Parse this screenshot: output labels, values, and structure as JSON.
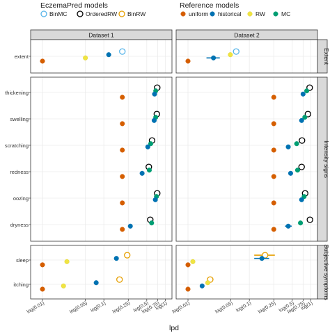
{
  "legend": {
    "eczemapred": {
      "title": "EczemaPred models",
      "items": [
        {
          "label": "BinMC",
          "color": "#56b4e9"
        },
        {
          "label": "OrderedRW",
          "color": "#000000"
        },
        {
          "label": "BinRW",
          "color": "#e69f00"
        }
      ]
    },
    "reference": {
      "title": "Reference models",
      "items": [
        {
          "label": "uniform",
          "color": "#d55e00"
        },
        {
          "label": "historical",
          "color": "#0072b2"
        },
        {
          "label": "RW",
          "color": "#f0e442"
        },
        {
          "label": "MC",
          "color": "#009e73"
        }
      ]
    }
  },
  "chart_data": {
    "type": "scatter",
    "xlabel": "lpd",
    "xscale": "log",
    "xticks": [
      "log(0.01)",
      "log(0.05)",
      "log(0.1)",
      "log(0.25)",
      "log(0.5)",
      "log(0.75)",
      "log(1)"
    ],
    "xtick_values": [
      0.01,
      0.05,
      0.1,
      0.25,
      0.5,
      0.75,
      1
    ],
    "xlim": [
      0.0075,
      1.1
    ],
    "columns": [
      "Dataset 1",
      "Dataset 2"
    ],
    "rows": [
      {
        "name": "Extent",
        "items": [
          "extent"
        ]
      },
      {
        "name": "Intensity signs",
        "items": [
          "thickening",
          "swelling",
          "scratching",
          "redness",
          "oozing",
          "dryness"
        ]
      },
      {
        "name": "Subjective symptoms",
        "items": [
          "sleep",
          "itching"
        ]
      }
    ],
    "series_colors": {
      "BinMC": "#56b4e9",
      "OrderedRW": "#000000",
      "BinRW": "#e69f00",
      "uniform": "#d55e00",
      "historical": "#0072b2",
      "RW": "#f0e442",
      "MC": "#009e73"
    },
    "points": {
      "Dataset 1": {
        "extent": [
          [
            "BinMC",
            0.2
          ],
          [
            "historical",
            0.12
          ],
          [
            "RW",
            0.05
          ],
          [
            "uniform",
            0.01
          ]
        ],
        "thickening": [
          [
            "OrderedRW",
            0.74
          ],
          [
            "MC",
            0.7
          ],
          [
            "historical",
            0.67
          ],
          [
            "uniform",
            0.2
          ]
        ],
        "swelling": [
          [
            "OrderedRW",
            0.73
          ],
          [
            "MC",
            0.7
          ],
          [
            "historical",
            0.66
          ],
          [
            "uniform",
            0.2
          ]
        ],
        "scratching": [
          [
            "OrderedRW",
            0.61
          ],
          [
            "MC",
            0.58
          ],
          [
            "historical",
            0.52
          ],
          [
            "uniform",
            0.2
          ]
        ],
        "redness": [
          [
            "OrderedRW",
            0.54
          ],
          [
            "MC",
            0.55
          ],
          [
            "historical",
            0.42
          ],
          [
            "uniform",
            0.2
          ]
        ],
        "oozing": [
          [
            "OrderedRW",
            0.74
          ],
          [
            "MC",
            0.72
          ],
          [
            "historical",
            0.69
          ],
          [
            "uniform",
            0.2
          ]
        ],
        "dryness": [
          [
            "OrderedRW",
            0.57
          ],
          [
            "MC",
            0.6
          ],
          [
            "historical",
            0.27
          ],
          [
            "uniform",
            0.2
          ]
        ],
        "sleep": [
          [
            "BinRW",
            0.24
          ],
          [
            "historical",
            0.16
          ],
          [
            "RW",
            0.025
          ],
          [
            "uniform",
            0.01
          ]
        ],
        "itching": [
          [
            "BinRW",
            0.18
          ],
          [
            "historical",
            0.075
          ],
          [
            "RW",
            0.022
          ],
          [
            "uniform",
            0.01
          ]
        ]
      },
      "Dataset 2": {
        "extent": [
          [
            "BinMC",
            0.061,
            0.054,
            0.069
          ],
          [
            "RW",
            0.049
          ],
          [
            "historical",
            0.026,
            0.02,
            0.033
          ],
          [
            "uniform",
            0.01
          ]
        ],
        "thickening": [
          [
            "OrderedRW",
            0.96
          ],
          [
            "MC",
            0.86
          ],
          [
            "historical",
            0.75
          ],
          [
            "uniform",
            0.25
          ]
        ],
        "swelling": [
          [
            "OrderedRW",
            0.9
          ],
          [
            "MC",
            0.8
          ],
          [
            "historical",
            0.71
          ],
          [
            "uniform",
            0.25
          ]
        ],
        "scratching": [
          [
            "OrderedRW",
            0.72
          ],
          [
            "MC",
            0.59
          ],
          [
            "historical",
            0.43
          ],
          [
            "uniform",
            0.25
          ]
        ],
        "redness": [
          [
            "OrderedRW",
            0.71
          ],
          [
            "MC",
            0.61
          ],
          [
            "historical",
            0.47
          ],
          [
            "uniform",
            0.25
          ]
        ],
        "oozing": [
          [
            "OrderedRW",
            0.81
          ],
          [
            "MC",
            0.78
          ],
          [
            "historical",
            0.71
          ],
          [
            "uniform",
            0.25
          ]
        ],
        "dryness": [
          [
            "OrderedRW",
            0.97
          ],
          [
            "MC",
            0.68
          ],
          [
            "historical",
            0.43,
            0.38,
            0.49
          ],
          [
            "uniform",
            0.25
          ]
        ],
        "sleep": [
          [
            "BinRW",
            0.18,
            0.12,
            0.26
          ],
          [
            "historical",
            0.16,
            0.12,
            0.21
          ],
          [
            "RW",
            0.012
          ],
          [
            "uniform",
            0.01
          ]
        ],
        "itching": [
          [
            "BinRW",
            0.023,
            0.021,
            0.026
          ],
          [
            "RW",
            0.021
          ],
          [
            "historical",
            0.017
          ],
          [
            "uniform",
            0.01
          ]
        ]
      }
    }
  }
}
